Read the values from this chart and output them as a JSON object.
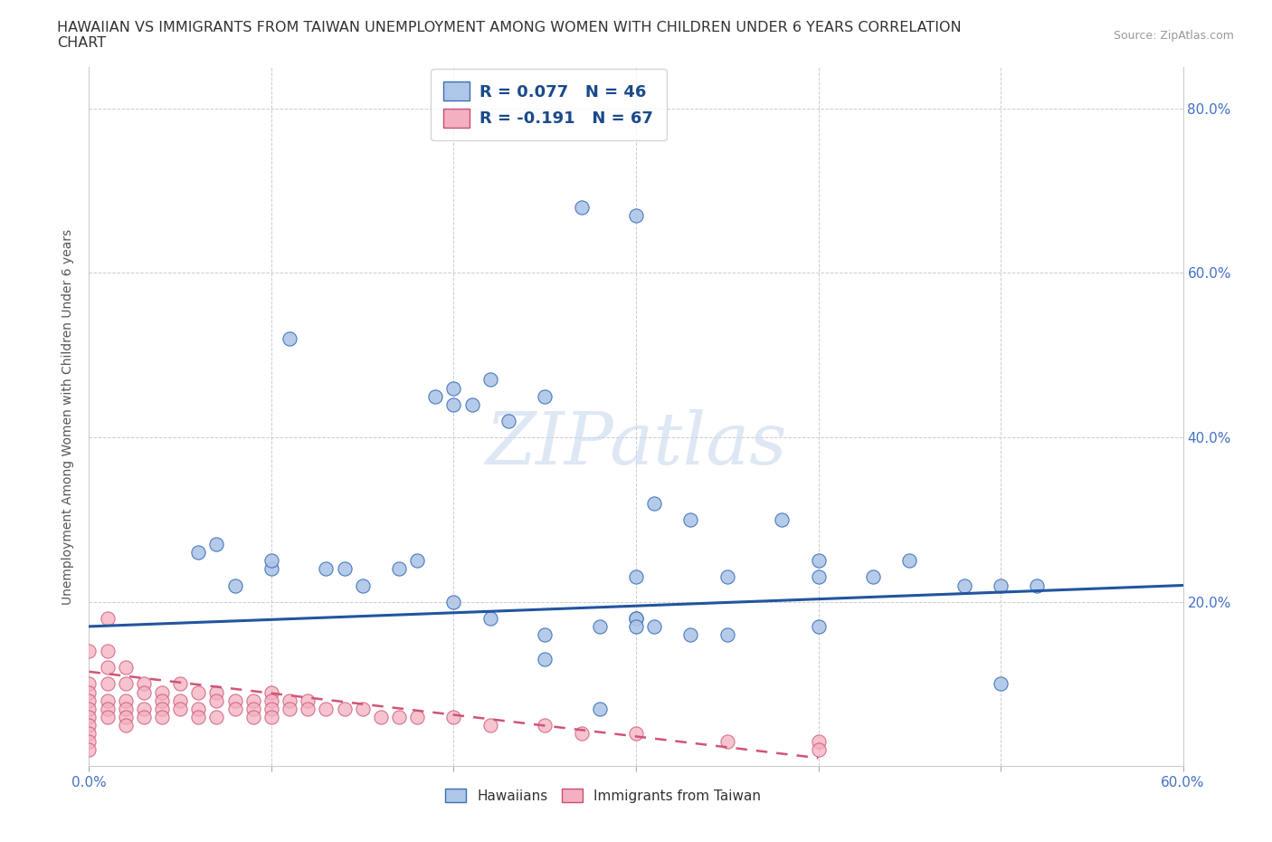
{
  "title_line1": "HAWAIIAN VS IMMIGRANTS FROM TAIWAN UNEMPLOYMENT AMONG WOMEN WITH CHILDREN UNDER 6 YEARS CORRELATION",
  "title_line2": "CHART",
  "source": "Source: ZipAtlas.com",
  "ylabel": "Unemployment Among Women with Children Under 6 years",
  "xlim": [
    0.0,
    0.6
  ],
  "ylim": [
    0.0,
    0.85
  ],
  "xtick_positions": [
    0.0,
    0.1,
    0.2,
    0.3,
    0.4,
    0.5,
    0.6
  ],
  "xticklabels": [
    "0.0%",
    "",
    "",
    "",
    "",
    "",
    "60.0%"
  ],
  "ytick_positions": [
    0.0,
    0.2,
    0.4,
    0.6,
    0.8
  ],
  "yticklabels_right": [
    "",
    "20.0%",
    "40.0%",
    "60.0%",
    "80.0%"
  ],
  "legend_r_blue": "R = 0.077",
  "legend_n_blue": "N = 46",
  "legend_r_pink": "R = -0.191",
  "legend_n_pink": "N = 67",
  "blue_color": "#aec6e8",
  "blue_edge": "#3a6fb5",
  "pink_color": "#f4afc0",
  "pink_edge": "#c85070",
  "trend_blue_color": "#2255a0",
  "trend_pink_color": "#d05575",
  "watermark_text": "ZIPatlas",
  "hawaiians_x": [
    0.06,
    0.07,
    0.08,
    0.1,
    0.1,
    0.11,
    0.13,
    0.14,
    0.15,
    0.17,
    0.18,
    0.19,
    0.2,
    0.2,
    0.21,
    0.22,
    0.23,
    0.25,
    0.27,
    0.3,
    0.3,
    0.3,
    0.31,
    0.33,
    0.35,
    0.38,
    0.4,
    0.45,
    0.48,
    0.5,
    0.3,
    0.31,
    0.35,
    0.4,
    0.5,
    0.52,
    0.25,
    0.28,
    0.3,
    0.33,
    0.4,
    0.43,
    0.2,
    0.22,
    0.25,
    0.28
  ],
  "hawaiians_y": [
    0.26,
    0.27,
    0.22,
    0.24,
    0.25,
    0.52,
    0.24,
    0.24,
    0.22,
    0.24,
    0.25,
    0.45,
    0.44,
    0.46,
    0.44,
    0.47,
    0.42,
    0.45,
    0.68,
    0.67,
    0.23,
    0.18,
    0.32,
    0.3,
    0.23,
    0.3,
    0.25,
    0.25,
    0.22,
    0.1,
    0.18,
    0.17,
    0.16,
    0.17,
    0.22,
    0.22,
    0.16,
    0.17,
    0.17,
    0.16,
    0.23,
    0.23,
    0.2,
    0.18,
    0.13,
    0.07
  ],
  "taiwan_x": [
    0.0,
    0.0,
    0.0,
    0.0,
    0.0,
    0.0,
    0.0,
    0.0,
    0.0,
    0.0,
    0.01,
    0.01,
    0.01,
    0.01,
    0.01,
    0.01,
    0.01,
    0.02,
    0.02,
    0.02,
    0.02,
    0.02,
    0.02,
    0.03,
    0.03,
    0.03,
    0.03,
    0.04,
    0.04,
    0.04,
    0.04,
    0.05,
    0.05,
    0.05,
    0.06,
    0.06,
    0.06,
    0.07,
    0.07,
    0.07,
    0.08,
    0.08,
    0.09,
    0.09,
    0.09,
    0.1,
    0.1,
    0.1,
    0.1,
    0.11,
    0.11,
    0.12,
    0.12,
    0.13,
    0.14,
    0.15,
    0.16,
    0.17,
    0.18,
    0.2,
    0.22,
    0.25,
    0.27,
    0.3,
    0.35,
    0.4,
    0.4
  ],
  "taiwan_y": [
    0.14,
    0.1,
    0.09,
    0.08,
    0.07,
    0.06,
    0.05,
    0.04,
    0.03,
    0.02,
    0.18,
    0.14,
    0.12,
    0.1,
    0.08,
    0.07,
    0.06,
    0.12,
    0.1,
    0.08,
    0.07,
    0.06,
    0.05,
    0.1,
    0.09,
    0.07,
    0.06,
    0.09,
    0.08,
    0.07,
    0.06,
    0.1,
    0.08,
    0.07,
    0.09,
    0.07,
    0.06,
    0.09,
    0.08,
    0.06,
    0.08,
    0.07,
    0.08,
    0.07,
    0.06,
    0.09,
    0.08,
    0.07,
    0.06,
    0.08,
    0.07,
    0.08,
    0.07,
    0.07,
    0.07,
    0.07,
    0.06,
    0.06,
    0.06,
    0.06,
    0.05,
    0.05,
    0.04,
    0.04,
    0.03,
    0.03,
    0.02
  ],
  "blue_trend_x0": 0.0,
  "blue_trend_y0": 0.17,
  "blue_trend_x1": 0.6,
  "blue_trend_y1": 0.22,
  "pink_trend_x0": 0.0,
  "pink_trend_y0": 0.115,
  "pink_trend_x1": 0.4,
  "pink_trend_y1": 0.01,
  "background_color": "#ffffff",
  "grid_color": "#cccccc"
}
